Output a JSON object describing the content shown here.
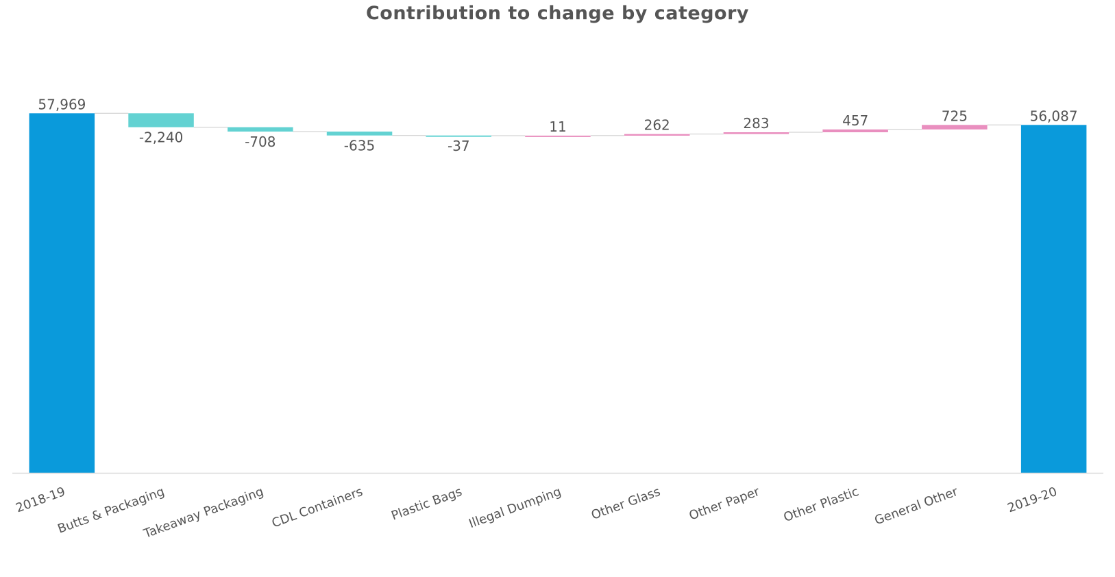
{
  "chart_data": {
    "type": "waterfall",
    "title": "Contribution to change by category",
    "xlabel": "",
    "ylabel": "",
    "ylim": [
      0,
      60000
    ],
    "grid": false,
    "legend": "none",
    "categories": [
      "2018-19",
      "Butts & Packaging",
      "Takeaway Packaging",
      "CDL Containers",
      "Plastic Bags",
      "Illegal Dumping",
      "Other Glass",
      "Other Paper",
      "Other Plastic",
      "General Other",
      "2019-20"
    ],
    "values": [
      57969,
      -2240,
      -708,
      -635,
      -37,
      11,
      262,
      283,
      457,
      725,
      56087
    ],
    "data_labels": [
      "57,969",
      "-2,240",
      "-708",
      "-635",
      "-37",
      "11",
      "262",
      "283",
      "457",
      "725",
      "56,087"
    ],
    "kinds": [
      "total",
      "delta",
      "delta",
      "delta",
      "delta",
      "delta",
      "delta",
      "delta",
      "delta",
      "delta",
      "total"
    ],
    "colors": {
      "total": "#0A9ADB",
      "decrease": "#63D2D2",
      "increase": "#E98FBF",
      "connector": "#C8C8C8",
      "axis": "#D9D9D9",
      "text": "#555555"
    }
  }
}
